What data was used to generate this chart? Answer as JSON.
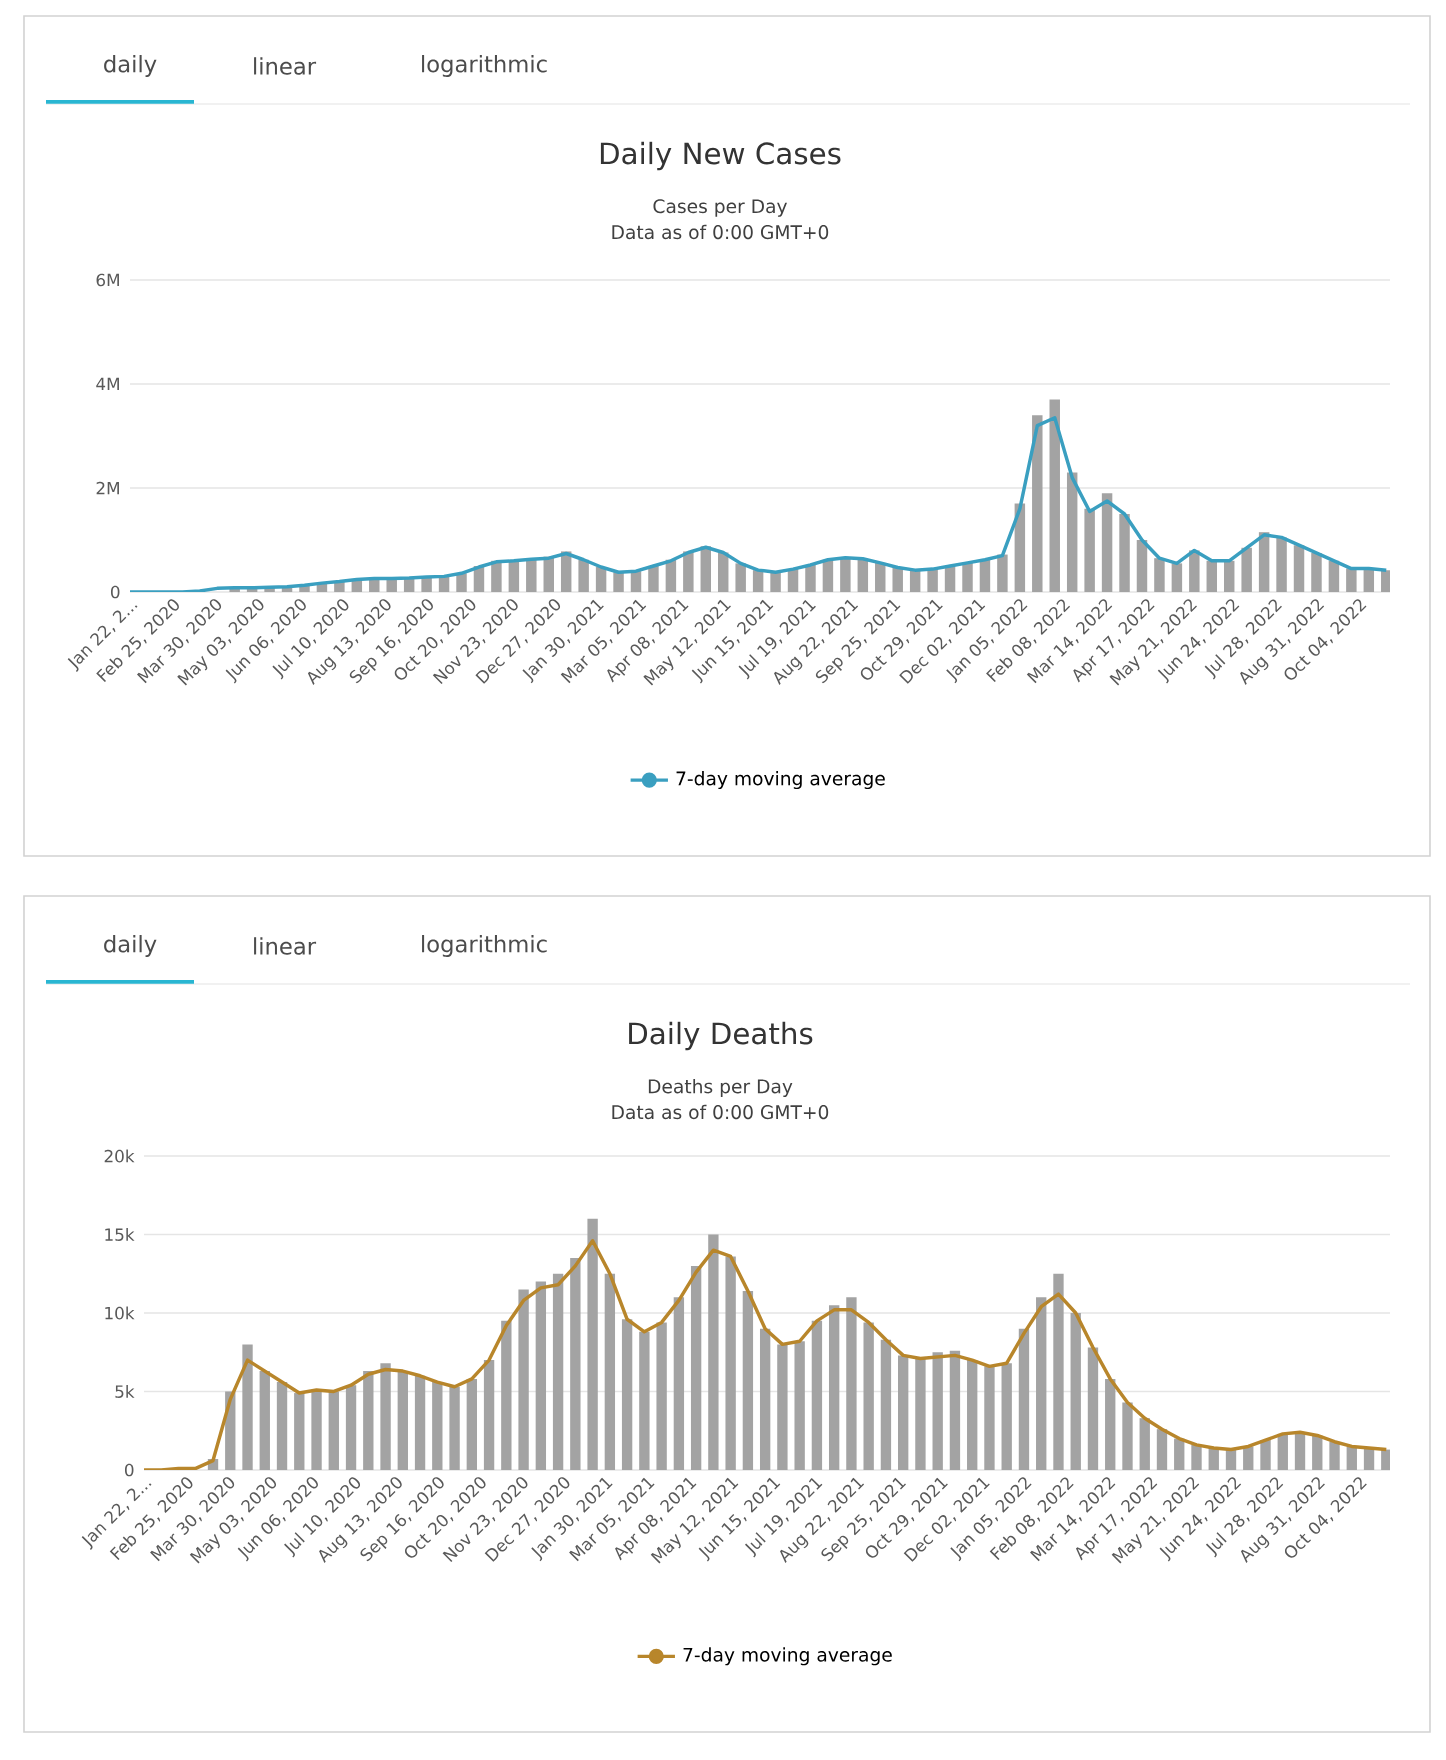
{
  "chart_data": [
    {
      "type": "bar",
      "title": "Daily New Cases",
      "subtitle": "Cases per Day",
      "annotations": [
        "daily",
        "linear",
        "logarithmic",
        "Data as of 0:00 GMT+0"
      ],
      "x": [
        "2020-01-22",
        "2020-02-05",
        "2020-02-19",
        "2020-03-04",
        "2020-03-18",
        "2020-04-01",
        "2020-04-15",
        "2020-04-29",
        "2020-05-13",
        "2020-05-27",
        "2020-06-10",
        "2020-06-24",
        "2020-07-08",
        "2020-07-22",
        "2020-08-05",
        "2020-08-19",
        "2020-09-02",
        "2020-09-16",
        "2020-09-30",
        "2020-10-14",
        "2020-10-28",
        "2020-11-11",
        "2020-11-25",
        "2020-12-09",
        "2020-12-23",
        "2021-01-06",
        "2021-01-20",
        "2021-02-03",
        "2021-02-17",
        "2021-03-03",
        "2021-03-17",
        "2021-03-31",
        "2021-04-14",
        "2021-04-28",
        "2021-05-12",
        "2021-05-26",
        "2021-06-09",
        "2021-06-23",
        "2021-07-07",
        "2021-07-21",
        "2021-08-04",
        "2021-08-18",
        "2021-09-01",
        "2021-09-15",
        "2021-09-29",
        "2021-10-13",
        "2021-10-27",
        "2021-11-10",
        "2021-11-24",
        "2021-12-08",
        "2021-12-22",
        "2022-01-05",
        "2022-01-19",
        "2022-02-02",
        "2022-02-16",
        "2022-03-02",
        "2022-03-16",
        "2022-03-30",
        "2022-04-13",
        "2022-04-27",
        "2022-05-11",
        "2022-05-25",
        "2022-06-08",
        "2022-06-22",
        "2022-07-06",
        "2022-07-20",
        "2022-08-03",
        "2022-08-17",
        "2022-08-31",
        "2022-09-14",
        "2022-09-28",
        "2022-10-12",
        "2022-10-26"
      ],
      "series": [
        {
          "color": "#a3a3a3",
          "values": [
            0,
            0,
            0,
            0,
            null,
            null,
            0.08,
            0.08,
            0.09,
            0.1,
            0.13,
            0.17,
            0.2,
            0.24,
            0.26,
            0.26,
            0.27,
            0.29,
            0.3,
            0.36,
            0.5,
            0.6,
            0.6,
            0.65,
            0.68,
            0.78,
            0.62,
            0.48,
            0.38,
            0.4,
            0.5,
            0.62,
            0.78,
            0.88,
            0.76,
            0.55,
            0.42,
            0.38,
            0.44,
            0.52,
            0.62,
            0.66,
            0.64,
            0.56,
            0.47,
            0.42,
            0.44,
            0.5,
            0.56,
            0.62,
            0.72,
            1.7,
            3.4,
            3.7,
            2.3,
            1.6,
            1.9,
            1.5,
            1.0,
            0.65,
            0.55,
            0.8,
            0.6,
            0.6,
            0.85,
            1.15,
            1.05,
            0.9,
            0.75,
            0.6,
            0.45,
            0.45,
            0.42
          ]
        },
        {
          "type": "line",
          "name": "7-day moving average",
          "color": "#3a9fc0",
          "values": [
            0,
            0,
            0,
            0,
            0.02,
            0.07,
            0.08,
            0.08,
            0.09,
            0.1,
            0.13,
            0.17,
            0.2,
            0.24,
            0.26,
            0.26,
            0.27,
            0.29,
            0.3,
            0.36,
            0.48,
            0.58,
            0.6,
            0.63,
            0.65,
            0.74,
            0.62,
            0.48,
            0.38,
            0.4,
            0.5,
            0.6,
            0.76,
            0.86,
            0.76,
            0.55,
            0.42,
            0.38,
            0.44,
            0.52,
            0.62,
            0.66,
            0.64,
            0.56,
            0.47,
            0.42,
            0.44,
            0.5,
            0.56,
            0.62,
            0.7,
            1.6,
            3.2,
            3.35,
            2.2,
            1.55,
            1.75,
            1.5,
            1.0,
            0.65,
            0.55,
            0.8,
            0.6,
            0.6,
            0.85,
            1.1,
            1.05,
            0.9,
            0.75,
            0.6,
            0.45,
            0.45,
            0.42
          ]
        }
      ],
      "xlim": [
        "2020-01-22",
        "2022-10-29"
      ],
      "xticks": [
        {
          "value": "2020-01-22",
          "label": "Jan 22, 2..."
        },
        {
          "value": "2020-02-25",
          "label": "Feb 25, 2020"
        },
        {
          "value": "2020-03-30",
          "label": "Mar 30, 2020"
        },
        {
          "value": "2020-05-03",
          "label": "May 03, 2020"
        },
        {
          "value": "2020-06-06",
          "label": "Jun 06, 2020"
        },
        {
          "value": "2020-07-10",
          "label": "Jul 10, 2020"
        },
        {
          "value": "2020-08-13",
          "label": "Aug 13, 2020"
        },
        {
          "value": "2020-09-16",
          "label": "Sep 16, 2020"
        },
        {
          "value": "2020-10-20",
          "label": "Oct 20, 2020"
        },
        {
          "value": "2020-11-23",
          "label": "Nov 23, 2020"
        },
        {
          "value": "2020-12-27",
          "label": "Dec 27, 2020"
        },
        {
          "value": "2021-01-30",
          "label": "Jan 30, 2021"
        },
        {
          "value": "2021-03-05",
          "label": "Mar 05, 2021"
        },
        {
          "value": "2021-04-08",
          "label": "Apr 08, 2021"
        },
        {
          "value": "2021-05-12",
          "label": "May 12, 2021"
        },
        {
          "value": "2021-06-15",
          "label": "Jun 15, 2021"
        },
        {
          "value": "2021-07-19",
          "label": "Jul 19, 2021"
        },
        {
          "value": "2021-08-22",
          "label": "Aug 22, 2021"
        },
        {
          "value": "2021-09-25",
          "label": "Sep 25, 2021"
        },
        {
          "value": "2021-10-29",
          "label": "Oct 29, 2021"
        },
        {
          "value": "2021-12-02",
          "label": "Dec 02, 2021"
        },
        {
          "value": "2022-01-05",
          "label": "Jan 05, 2022"
        },
        {
          "value": "2022-02-08",
          "label": "Feb 08, 2022"
        },
        {
          "value": "2022-03-14",
          "label": "Mar 14, 2022"
        },
        {
          "value": "2022-04-17",
          "label": "Apr 17, 2022"
        },
        {
          "value": "2022-05-21",
          "label": "May 21, 2022"
        },
        {
          "value": "2022-06-24",
          "label": "Jun 24, 2022"
        },
        {
          "value": "2022-07-28",
          "label": "Jul 28, 2022"
        },
        {
          "value": "2022-08-31",
          "label": "Aug 31, 2022"
        },
        {
          "value": "2022-10-04",
          "label": "Oct 04, 2022"
        }
      ],
      "ylim": [
        0,
        6
      ],
      "yticks": [
        0,
        {
          "value": 2,
          "label": "2M"
        },
        {
          "value": 4,
          "label": "4M"
        },
        {
          "value": 6,
          "label": "6M"
        }
      ],
      "grid": "y",
      "legend": "bottom"
    },
    {
      "type": "bar",
      "title": "Daily Deaths",
      "subtitle": "Deaths per Day",
      "annotations": [
        "daily",
        "linear",
        "logarithmic",
        "Data as of 0:00 GMT+0"
      ],
      "x": [
        "2020-01-22",
        "2020-02-05",
        "2020-02-19",
        "2020-03-04",
        "2020-03-18",
        "2020-04-01",
        "2020-04-15",
        "2020-04-29",
        "2020-05-13",
        "2020-05-27",
        "2020-06-10",
        "2020-06-24",
        "2020-07-08",
        "2020-07-22",
        "2020-08-05",
        "2020-08-19",
        "2020-09-02",
        "2020-09-16",
        "2020-09-30",
        "2020-10-14",
        "2020-10-28",
        "2020-11-11",
        "2020-11-25",
        "2020-12-09",
        "2020-12-23",
        "2021-01-06",
        "2021-01-20",
        "2021-02-03",
        "2021-02-17",
        "2021-03-03",
        "2021-03-17",
        "2021-03-31",
        "2021-04-14",
        "2021-04-28",
        "2021-05-12",
        "2021-05-26",
        "2021-06-09",
        "2021-06-23",
        "2021-07-07",
        "2021-07-21",
        "2021-08-04",
        "2021-08-18",
        "2021-09-01",
        "2021-09-15",
        "2021-09-29",
        "2021-10-13",
        "2021-10-27",
        "2021-11-10",
        "2021-11-24",
        "2021-12-08",
        "2021-12-22",
        "2022-01-05",
        "2022-01-19",
        "2022-02-02",
        "2022-02-16",
        "2022-03-02",
        "2022-03-16",
        "2022-03-30",
        "2022-04-13",
        "2022-04-27",
        "2022-05-11",
        "2022-05-25",
        "2022-06-08",
        "2022-06-22",
        "2022-07-06",
        "2022-07-20",
        "2022-08-03",
        "2022-08-17",
        "2022-08-31",
        "2022-09-14",
        "2022-09-28",
        "2022-10-12",
        "2022-10-26"
      ],
      "series": [
        {
          "color": "#a3a3a3",
          "values": [
            0,
            0,
            null,
            null,
            0.7,
            5,
            8,
            6.3,
            5.6,
            4.9,
            5.1,
            5,
            5.4,
            6.3,
            6.8,
            6.3,
            6,
            5.6,
            5.3,
            5.8,
            7,
            9.5,
            11.5,
            12,
            12.5,
            13.5,
            16,
            12.5,
            9.6,
            8.8,
            9.4,
            11,
            13,
            15,
            13.6,
            11.4,
            9,
            8,
            8.2,
            9.5,
            10.5,
            11,
            9.4,
            8.3,
            7.3,
            7.1,
            7.5,
            7.6,
            7,
            6.6,
            6.8,
            9,
            11,
            12.5,
            10,
            7.8,
            5.8,
            4.3,
            3.3,
            2.6,
            2,
            1.6,
            1.4,
            1.3,
            1.5,
            1.9,
            2.3,
            2.4,
            2.2,
            1.8,
            1.5,
            1.4,
            1.3
          ]
        },
        {
          "type": "line",
          "name": "7-day moving average",
          "color": "#b8862b",
          "values": [
            0,
            0,
            0.1,
            0.1,
            0.6,
            4.5,
            7,
            6.3,
            5.6,
            4.9,
            5.1,
            5,
            5.4,
            6.1,
            6.4,
            6.3,
            6,
            5.6,
            5.3,
            5.8,
            7,
            9.2,
            10.8,
            11.6,
            11.8,
            13,
            14.6,
            12.5,
            9.6,
            8.8,
            9.4,
            10.8,
            12.6,
            14,
            13.6,
            11.4,
            9,
            8,
            8.2,
            9.5,
            10.2,
            10.2,
            9.4,
            8.3,
            7.3,
            7.1,
            7.2,
            7.3,
            7,
            6.6,
            6.8,
            8.7,
            10.4,
            11.2,
            10,
            7.8,
            5.8,
            4.3,
            3.3,
            2.6,
            2,
            1.6,
            1.4,
            1.3,
            1.5,
            1.9,
            2.3,
            2.4,
            2.2,
            1.8,
            1.5,
            1.4,
            1.3
          ]
        }
      ],
      "xlim": [
        "2020-01-22",
        "2022-10-29"
      ],
      "xticks": [
        {
          "value": "2020-01-22",
          "label": "Jan 22, 2..."
        },
        {
          "value": "2020-02-25",
          "label": "Feb 25, 2020"
        },
        {
          "value": "2020-03-30",
          "label": "Mar 30, 2020"
        },
        {
          "value": "2020-05-03",
          "label": "May 03, 2020"
        },
        {
          "value": "2020-06-06",
          "label": "Jun 06, 2020"
        },
        {
          "value": "2020-07-10",
          "label": "Jul 10, 2020"
        },
        {
          "value": "2020-08-13",
          "label": "Aug 13, 2020"
        },
        {
          "value": "2020-09-16",
          "label": "Sep 16, 2020"
        },
        {
          "value": "2020-10-20",
          "label": "Oct 20, 2020"
        },
        {
          "value": "2020-11-23",
          "label": "Nov 23, 2020"
        },
        {
          "value": "2020-12-27",
          "label": "Dec 27, 2020"
        },
        {
          "value": "2021-01-30",
          "label": "Jan 30, 2021"
        },
        {
          "value": "2021-03-05",
          "label": "Mar 05, 2021"
        },
        {
          "value": "2021-04-08",
          "label": "Apr 08, 2021"
        },
        {
          "value": "2021-05-12",
          "label": "May 12, 2021"
        },
        {
          "value": "2021-06-15",
          "label": "Jun 15, 2021"
        },
        {
          "value": "2021-07-19",
          "label": "Jul 19, 2021"
        },
        {
          "value": "2021-08-22",
          "label": "Aug 22, 2021"
        },
        {
          "value": "2021-09-25",
          "label": "Sep 25, 2021"
        },
        {
          "value": "2021-10-29",
          "label": "Oct 29, 2021"
        },
        {
          "value": "2021-12-02",
          "label": "Dec 02, 2021"
        },
        {
          "value": "2022-01-05",
          "label": "Jan 05, 2022"
        },
        {
          "value": "2022-02-08",
          "label": "Feb 08, 2022"
        },
        {
          "value": "2022-03-14",
          "label": "Mar 14, 2022"
        },
        {
          "value": "2022-04-17",
          "label": "Apr 17, 2022"
        },
        {
          "value": "2022-05-21",
          "label": "May 21, 2022"
        },
        {
          "value": "2022-06-24",
          "label": "Jun 24, 2022"
        },
        {
          "value": "2022-07-28",
          "label": "Jul 28, 2022"
        },
        {
          "value": "2022-08-31",
          "label": "Aug 31, 2022"
        },
        {
          "value": "2022-10-04",
          "label": "Oct 04, 2022"
        }
      ],
      "ylim": [
        0,
        20
      ],
      "yticks": [
        0,
        {
          "value": 5,
          "label": "5k"
        },
        {
          "value": 10,
          "label": "10k"
        },
        {
          "value": 15,
          "label": "15k"
        },
        {
          "value": 20,
          "label": "20k"
        }
      ],
      "grid": "y",
      "legend": "bottom"
    }
  ]
}
